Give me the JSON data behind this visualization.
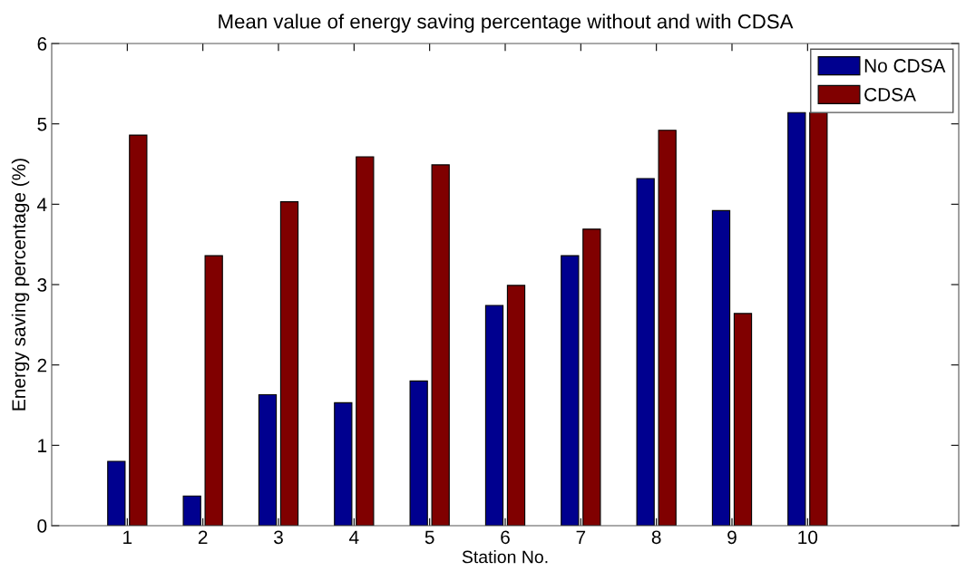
{
  "chart_data": {
    "type": "bar",
    "title": "Mean value of energy saving percentage without and with CDSA",
    "xlabel": "Station No.",
    "ylabel": "Energy saving percentage (%)",
    "x": [
      1,
      2,
      3,
      4,
      5,
      6,
      7,
      8,
      9,
      10
    ],
    "series": [
      {
        "name": "No CDSA",
        "color": "#00008f",
        "values": [
          0.8,
          0.37,
          1.63,
          1.53,
          1.8,
          2.74,
          3.36,
          4.32,
          3.92,
          5.14
        ]
      },
      {
        "name": "CDSA",
        "color": "#800000",
        "values": [
          4.86,
          3.36,
          4.03,
          4.59,
          4.49,
          2.99,
          3.69,
          4.92,
          2.64,
          5.14
        ]
      }
    ],
    "xlim": [
      0,
      12
    ],
    "xticks": [
      1,
      2,
      3,
      4,
      5,
      6,
      7,
      8,
      9,
      10
    ],
    "ylim": [
      0,
      6
    ],
    "yticks": [
      0,
      1,
      2,
      3,
      4,
      5,
      6
    ],
    "grid": false,
    "legend": "top right"
  }
}
